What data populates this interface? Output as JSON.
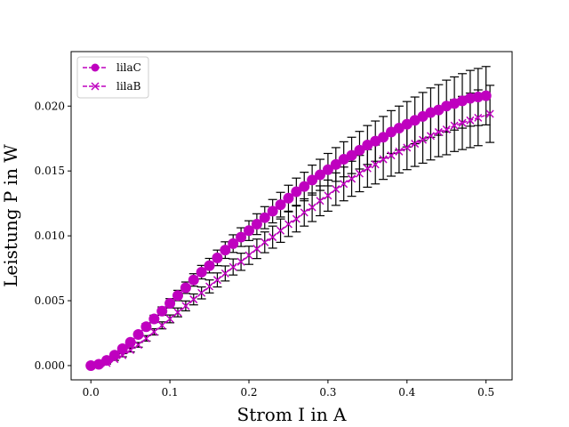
{
  "chart_data": {
    "type": "scatter",
    "title": "",
    "xlabel": "Strom I in A",
    "ylabel": "Leistung P in W",
    "xlim": [
      -0.025,
      0.533
    ],
    "ylim": [
      -0.0011,
      0.0242
    ],
    "xticks": [
      0.0,
      0.1,
      0.2,
      0.3,
      0.4,
      0.5
    ],
    "xtick_labels": [
      "0.0",
      "0.1",
      "0.2",
      "0.3",
      "0.4",
      "0.5"
    ],
    "yticks": [
      0.0,
      0.005,
      0.01,
      0.015,
      0.02
    ],
    "ytick_labels": [
      "0.000",
      "0.005",
      "0.010",
      "0.015",
      "0.020"
    ],
    "grid": false,
    "legend": {
      "placement": "top-left"
    },
    "error_bar_color": "#000000",
    "series": [
      {
        "name": "lilaC",
        "marker": "circle",
        "linestyle": "dashed",
        "color": "#bf00bf",
        "x": [
          0.0,
          0.01,
          0.02,
          0.03,
          0.04,
          0.05,
          0.06,
          0.07,
          0.08,
          0.09,
          0.1,
          0.11,
          0.12,
          0.13,
          0.14,
          0.15,
          0.16,
          0.17,
          0.18,
          0.19,
          0.2,
          0.21,
          0.22,
          0.23,
          0.24,
          0.25,
          0.26,
          0.27,
          0.28,
          0.29,
          0.3,
          0.31,
          0.32,
          0.33,
          0.34,
          0.35,
          0.36,
          0.37,
          0.38,
          0.39,
          0.4,
          0.41,
          0.42,
          0.43,
          0.44,
          0.45,
          0.46,
          0.47,
          0.48,
          0.49,
          0.5
        ],
        "y": [
          0.0,
          0.0001,
          0.0004,
          0.0008,
          0.0013,
          0.0018,
          0.0024,
          0.003,
          0.0036,
          0.0042,
          0.0048,
          0.0054,
          0.006,
          0.0066,
          0.0072,
          0.0077,
          0.0083,
          0.0089,
          0.0094,
          0.0099,
          0.0104,
          0.0109,
          0.0114,
          0.0119,
          0.0124,
          0.0129,
          0.0134,
          0.0138,
          0.0143,
          0.0147,
          0.0151,
          0.0155,
          0.0159,
          0.0162,
          0.0166,
          0.017,
          0.0173,
          0.0176,
          0.018,
          0.0183,
          0.0186,
          0.0189,
          0.0192,
          0.0195,
          0.0197,
          0.02,
          0.0202,
          0.0204,
          0.0206,
          0.0207,
          0.0208
        ],
        "yerr": [
          5e-05,
          6e-05,
          8e-05,
          0.0001,
          0.00013,
          0.00016,
          0.0002,
          0.00024,
          0.00028,
          0.00032,
          0.00036,
          0.0004,
          0.00044,
          0.00048,
          0.00052,
          0.00056,
          0.0006,
          0.00064,
          0.00068,
          0.00072,
          0.00076,
          0.0008,
          0.00085,
          0.0009,
          0.00095,
          0.001,
          0.00105,
          0.0011,
          0.00115,
          0.0012,
          0.00125,
          0.0013,
          0.00135,
          0.0014,
          0.00145,
          0.0015,
          0.00155,
          0.0016,
          0.00165,
          0.0017,
          0.00175,
          0.0018,
          0.00185,
          0.0019,
          0.00195,
          0.002,
          0.00205,
          0.0021,
          0.00215,
          0.0022,
          0.00225
        ]
      },
      {
        "name": "lilaB",
        "marker": "x",
        "linestyle": "dashed",
        "color": "#bf00bf",
        "x": [
          0.0,
          0.01,
          0.02,
          0.03,
          0.04,
          0.05,
          0.06,
          0.07,
          0.08,
          0.09,
          0.1,
          0.11,
          0.12,
          0.13,
          0.14,
          0.15,
          0.16,
          0.17,
          0.18,
          0.19,
          0.2,
          0.21,
          0.22,
          0.23,
          0.24,
          0.25,
          0.26,
          0.27,
          0.28,
          0.29,
          0.3,
          0.31,
          0.32,
          0.33,
          0.34,
          0.35,
          0.36,
          0.37,
          0.38,
          0.39,
          0.4,
          0.41,
          0.42,
          0.43,
          0.44,
          0.45,
          0.46,
          0.47,
          0.48,
          0.49,
          0.505
        ],
        "y": [
          0.0,
          0.0001,
          0.0002,
          0.0005,
          0.0008,
          0.0012,
          0.0016,
          0.0021,
          0.0026,
          0.0031,
          0.0036,
          0.0041,
          0.0046,
          0.0051,
          0.0056,
          0.0061,
          0.0066,
          0.0071,
          0.0076,
          0.008,
          0.0085,
          0.009,
          0.0095,
          0.0099,
          0.0104,
          0.0109,
          0.0113,
          0.0118,
          0.0122,
          0.0127,
          0.0131,
          0.0136,
          0.014,
          0.0144,
          0.0148,
          0.0152,
          0.0155,
          0.0159,
          0.0162,
          0.0165,
          0.0168,
          0.0171,
          0.0174,
          0.0177,
          0.018,
          0.0182,
          0.0185,
          0.0187,
          0.0189,
          0.0191,
          0.0194
        ],
        "yerr": [
          5e-05,
          6e-05,
          8e-05,
          0.0001,
          0.00012,
          0.00015,
          0.00018,
          0.00021,
          0.00024,
          0.00027,
          0.0003,
          0.00034,
          0.00038,
          0.00042,
          0.00046,
          0.0005,
          0.00054,
          0.00058,
          0.00062,
          0.00066,
          0.0007,
          0.00075,
          0.0008,
          0.00085,
          0.0009,
          0.00095,
          0.001,
          0.00105,
          0.0011,
          0.00115,
          0.0012,
          0.00125,
          0.0013,
          0.00135,
          0.0014,
          0.00145,
          0.0015,
          0.00155,
          0.0016,
          0.00165,
          0.0017,
          0.00175,
          0.0018,
          0.00185,
          0.0019,
          0.00195,
          0.002,
          0.00205,
          0.0021,
          0.00215,
          0.0022
        ]
      }
    ]
  }
}
